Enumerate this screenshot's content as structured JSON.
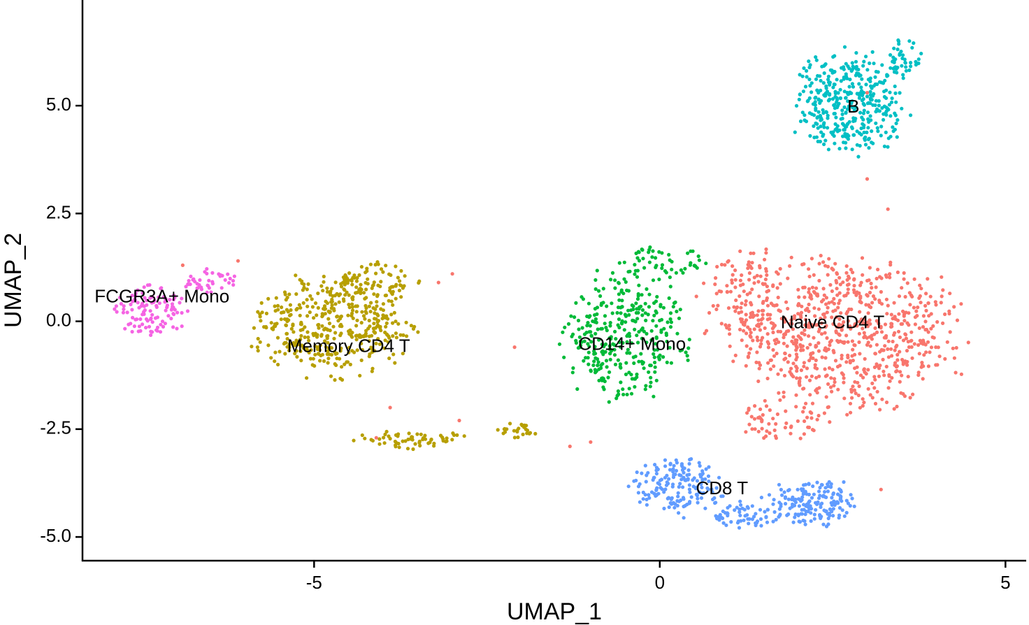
{
  "chart_data": {
    "type": "scatter",
    "title": "",
    "xlabel": "UMAP_1",
    "ylabel": "UMAP_2",
    "xlim": [
      -8.35,
      5.3
    ],
    "ylim": [
      -5.55,
      7.45
    ],
    "x_ticks": [
      {
        "value": -5,
        "label": "-5"
      },
      {
        "value": 0,
        "label": "0"
      },
      {
        "value": 5,
        "label": "5"
      }
    ],
    "y_ticks": [
      {
        "value": -5,
        "label": "-5.0"
      },
      {
        "value": -2.5,
        "label": "-2.5"
      },
      {
        "value": 0,
        "label": "0.0"
      },
      {
        "value": 2.5,
        "label": "2.5"
      },
      {
        "value": 5,
        "label": "5.0"
      }
    ],
    "grid": false,
    "legend": "none",
    "series": [
      {
        "name": "Naive CD4 T",
        "color": "#F8766D",
        "label_at": [
          2.5,
          -0.05
        ],
        "blobs": [
          {
            "cx": 2.7,
            "cy": -0.3,
            "rx": 1.9,
            "ry": 2.05,
            "n": 720
          },
          {
            "cx": 1.2,
            "cy": 0.6,
            "rx": 0.75,
            "ry": 1.35,
            "n": 120
          },
          {
            "cx": 1.75,
            "cy": -2.3,
            "rx": 0.8,
            "ry": 0.6,
            "n": 60
          }
        ]
      },
      {
        "name": "Memory CD4 T",
        "color": "#B79F00",
        "label_at": [
          -4.5,
          -0.6
        ],
        "blobs": [
          {
            "cx": -4.75,
            "cy": -0.1,
            "rx": 1.3,
            "ry": 1.35,
            "n": 420
          },
          {
            "cx": -4.1,
            "cy": 0.9,
            "rx": 0.7,
            "ry": 0.55,
            "n": 70
          },
          {
            "cx": -3.6,
            "cy": -2.75,
            "rx": 1.0,
            "ry": 0.25,
            "n": 60
          },
          {
            "cx": -2.1,
            "cy": -2.55,
            "rx": 0.4,
            "ry": 0.3,
            "n": 25
          }
        ]
      },
      {
        "name": "CD14+ Mono",
        "color": "#00BA38",
        "label_at": [
          -0.4,
          -0.55
        ],
        "blobs": [
          {
            "cx": -0.5,
            "cy": -0.3,
            "rx": 1.05,
            "ry": 1.75,
            "n": 330
          },
          {
            "cx": 0.05,
            "cy": 1.4,
            "rx": 0.75,
            "ry": 0.45,
            "n": 50
          }
        ]
      },
      {
        "name": "B",
        "color": "#00BFC4",
        "label_at": [
          2.8,
          4.95
        ],
        "blobs": [
          {
            "cx": 2.75,
            "cy": 5.05,
            "rx": 0.95,
            "ry": 1.4,
            "n": 380
          },
          {
            "cx": 3.55,
            "cy": 6.1,
            "rx": 0.3,
            "ry": 0.55,
            "n": 40
          }
        ]
      },
      {
        "name": "CD8 T",
        "color": "#619CFF",
        "label_at": [
          0.9,
          -3.9
        ],
        "blobs": [
          {
            "cx": 0.25,
            "cy": -3.8,
            "rx": 0.75,
            "ry": 0.8,
            "n": 170
          },
          {
            "cx": 2.2,
            "cy": -4.2,
            "rx": 0.8,
            "ry": 0.65,
            "n": 170
          },
          {
            "cx": 1.2,
            "cy": -4.5,
            "rx": 0.6,
            "ry": 0.35,
            "n": 60
          }
        ]
      },
      {
        "name": "FCGR3A+ Mono",
        "color": "#F564E3",
        "label_at": [
          -7.2,
          0.55
        ],
        "blobs": [
          {
            "cx": -7.35,
            "cy": 0.25,
            "rx": 0.6,
            "ry": 0.7,
            "n": 110
          },
          {
            "cx": -6.5,
            "cy": 0.9,
            "rx": 0.5,
            "ry": 0.35,
            "n": 40
          }
        ]
      }
    ]
  }
}
